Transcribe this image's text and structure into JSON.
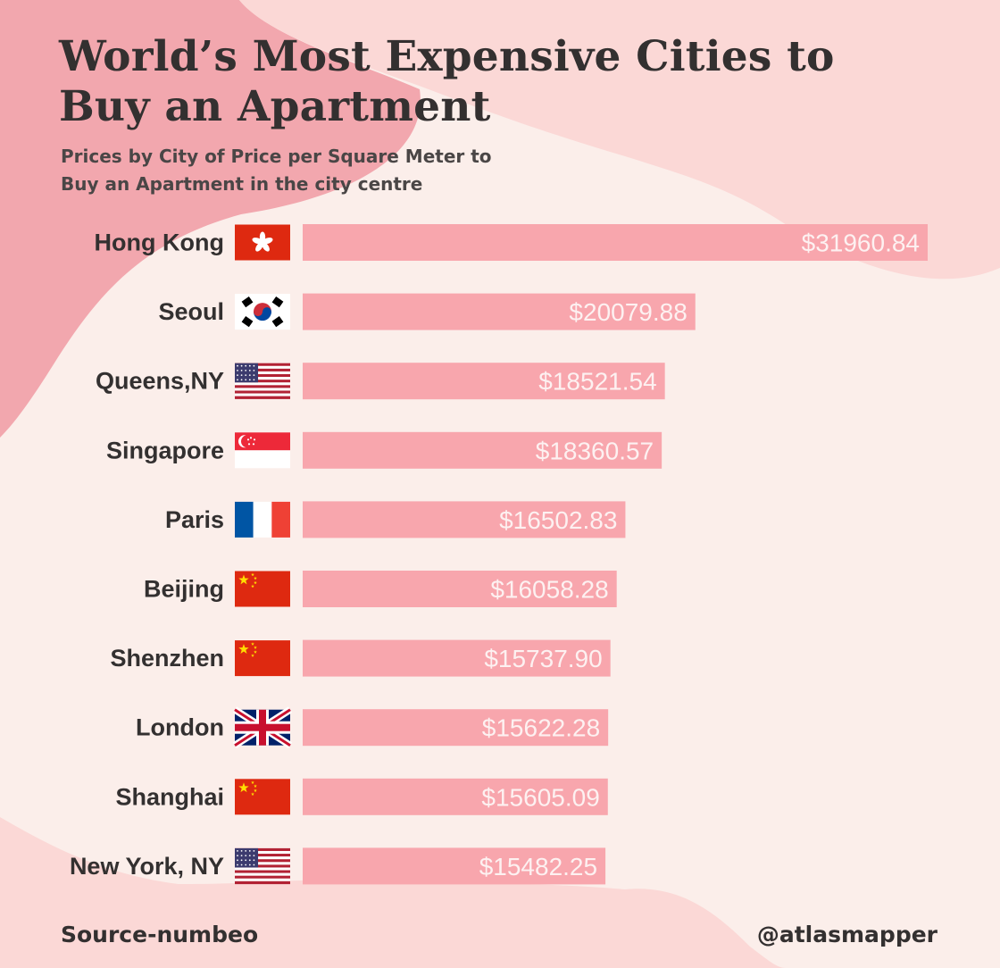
{
  "title_lines": [
    "World’s Most Expensive Cities to",
    "Buy an Apartment"
  ],
  "subtitle_lines": [
    "Prices by City of Price per Square Meter to",
    "Buy an Apartment in the city centre"
  ],
  "footer": {
    "source": "Source-numbeo",
    "handle": "@atlasmapper"
  },
  "colors": {
    "background": "#fbeeea",
    "blob_dark": "#f2a7ae",
    "blob_light": "#fbd8d6",
    "bar": "#f8a6ad",
    "bar_label": "#fdf1f1",
    "text": "#333030"
  },
  "chart_data": {
    "type": "bar",
    "orientation": "horizontal",
    "title": "World’s Most Expensive Cities to Buy an Apartment",
    "subtitle": "Prices by City of Price per Square Meter to Buy an Apartment in the city centre",
    "categories": [
      "Hong Kong",
      "Seoul",
      "Queens,NY",
      "Singapore",
      "Paris",
      "Beijing",
      "Shenzhen",
      "London",
      "Shanghai",
      "New York, NY"
    ],
    "values": [
      31960.84,
      20079.88,
      18521.54,
      18360.57,
      16502.83,
      16058.28,
      15737.9,
      15622.28,
      15605.09,
      15482.25
    ],
    "labels": [
      "$31960.84",
      "$20079.88",
      "$18521.54",
      "$18360.57",
      "$16502.83",
      "$16058.28",
      "$15737.90",
      "$15622.28",
      "$15605.09",
      "$15482.25"
    ],
    "flags": [
      "hong-kong-flag-icon",
      "south-korea-flag-icon",
      "usa-flag-icon",
      "singapore-flag-icon",
      "france-flag-icon",
      "china-flag-icon",
      "china-flag-icon",
      "uk-flag-icon",
      "china-flag-icon",
      "usa-flag-icon"
    ],
    "xlim": [
      0,
      31960.84
    ],
    "grid": false,
    "legend": "none"
  }
}
